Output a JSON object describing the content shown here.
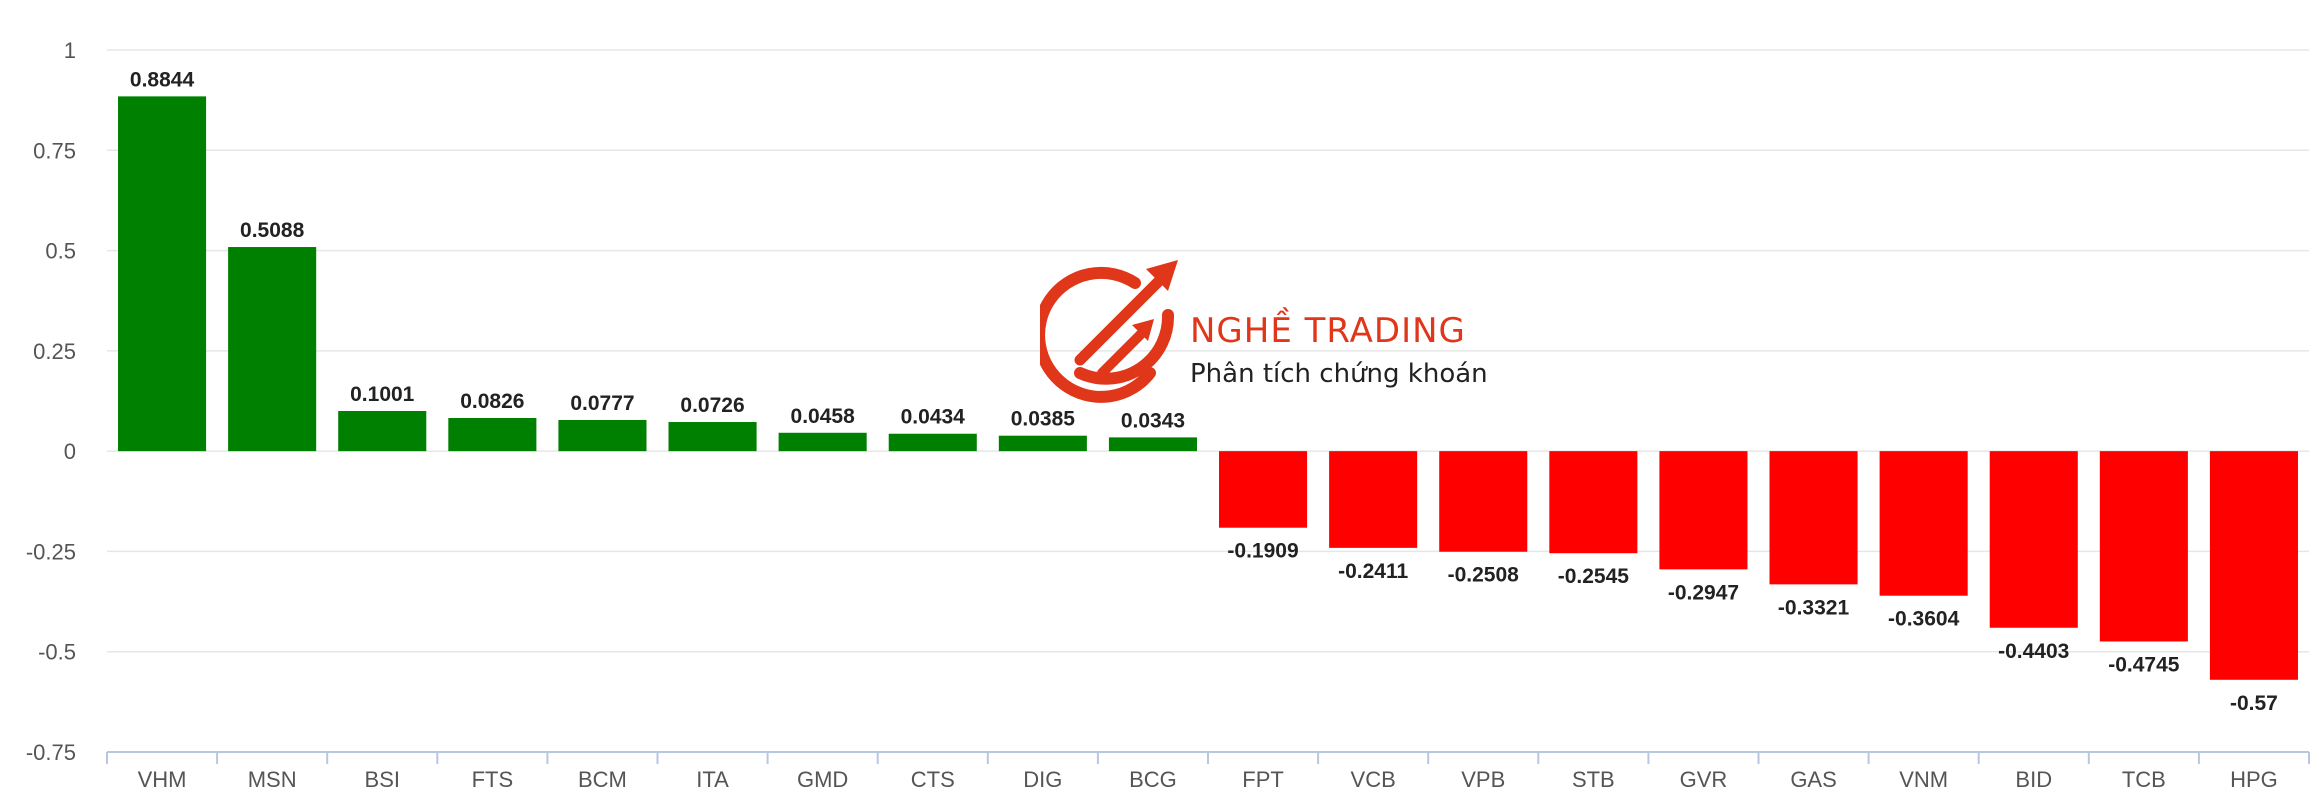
{
  "logo": {
    "title": "NGHỀ TRADING",
    "subtitle": "Phân tích chứng khoán",
    "icon": "chart-arrow-circle-icon",
    "color": "#e0371b"
  },
  "chart_data": {
    "type": "bar",
    "title": "",
    "xlabel": "",
    "ylabel": "",
    "ylim": [
      -0.75,
      1
    ],
    "yticks": [
      1,
      0.75,
      0.5,
      0.25,
      0,
      -0.25,
      -0.5,
      -0.75
    ],
    "ytick_labels": [
      "1",
      "0.75",
      "0.5",
      "0.25",
      "0",
      "-0.25",
      "-0.5",
      "-0.75"
    ],
    "grid": true,
    "legend": "none",
    "positive_color": "#008000",
    "negative_color": "#ff0000",
    "categories": [
      "VHM",
      "MSN",
      "BSI",
      "FTS",
      "BCM",
      "ITA",
      "GMD",
      "CTS",
      "DIG",
      "BCG",
      "FPT",
      "VCB",
      "VPB",
      "STB",
      "GVR",
      "GAS",
      "VNM",
      "BID",
      "TCB",
      "HPG"
    ],
    "values": [
      0.8844,
      0.5088,
      0.1001,
      0.0826,
      0.0777,
      0.0726,
      0.0458,
      0.0434,
      0.0385,
      0.0343,
      -0.1909,
      -0.2411,
      -0.2508,
      -0.2545,
      -0.2947,
      -0.3321,
      -0.3604,
      -0.4403,
      -0.4745,
      -0.57
    ],
    "value_labels": [
      "0.8844",
      "0.5088",
      "0.1001",
      "0.0826",
      "0.0777",
      "0.0726",
      "0.0458",
      "0.0434",
      "0.0385",
      "0.0343",
      "-0.1909",
      "-0.2411",
      "-0.2508",
      "-0.2545",
      "-0.2947",
      "-0.3321",
      "-0.3604",
      "-0.4403",
      "-0.4745",
      "-0.57"
    ]
  }
}
